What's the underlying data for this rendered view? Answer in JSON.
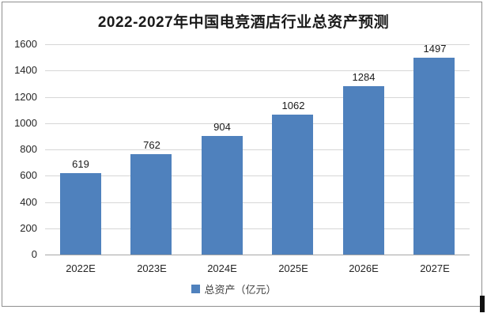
{
  "title": "2022-2027年中国电竞酒店行业总资产预测",
  "legend": {
    "marker": "square",
    "marker_color": "#4F81BD",
    "label": "总资产（亿元）"
  },
  "axes": {
    "y_ticks": [
      "0",
      "200",
      "400",
      "600",
      "800",
      "1000",
      "1200",
      "1400",
      "1600"
    ],
    "x_ticks": [
      "2022E",
      "2023E",
      "2024E",
      "2025E",
      "2026E",
      "2027E"
    ]
  },
  "colors": {
    "bar": "#4F81BD",
    "gridline": "#d6d6d6",
    "axis_line": "#a6a6a6",
    "border": "#8f8f8f",
    "text": "#262626"
  },
  "chart_data": {
    "type": "bar",
    "title": "2022-2027年中国电竞酒店行业总资产预测",
    "categories": [
      "2022E",
      "2023E",
      "2024E",
      "2025E",
      "2026E",
      "2027E"
    ],
    "series": [
      {
        "name": "总资产（亿元）",
        "values": [
          619,
          762,
          904,
          1062,
          1284,
          1497
        ]
      }
    ],
    "xlabel": "",
    "ylabel": "",
    "ylim": [
      0,
      1600
    ],
    "y_tick_step": 200,
    "grid": true,
    "data_labels": true,
    "legend_position": "bottom"
  }
}
